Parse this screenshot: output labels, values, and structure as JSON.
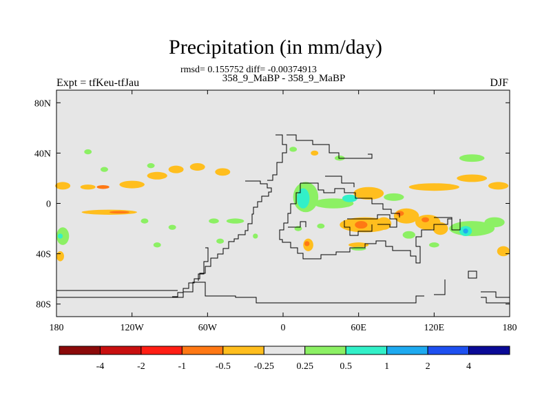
{
  "chart_data": {
    "type": "heatmap",
    "title": "Precipitation (in mm/day)",
    "stats_text": "rmsd= 0.155752 diff= -0.00374913",
    "subtitle": "358_9_MaBP - 358_9_MaBP",
    "left_label": "Expt = tfKeu-tfJau",
    "right_label": "DJF",
    "x_range": [
      -180,
      180
    ],
    "y_range": [
      -90,
      90
    ],
    "x_ticks": [
      {
        "value": -180,
        "label": "180"
      },
      {
        "value": -120,
        "label": "120W"
      },
      {
        "value": -60,
        "label": "60W"
      },
      {
        "value": 0,
        "label": "0"
      },
      {
        "value": 60,
        "label": "60E"
      },
      {
        "value": 120,
        "label": "120E"
      },
      {
        "value": 180,
        "label": "180"
      }
    ],
    "y_ticks": [
      {
        "value": 80,
        "label": "80N"
      },
      {
        "value": 40,
        "label": "40N"
      },
      {
        "value": 0,
        "label": "0"
      },
      {
        "value": -40,
        "label": "40S"
      },
      {
        "value": -80,
        "label": "80S"
      }
    ],
    "colorbar": {
      "colors": [
        "#8b0a0a",
        "#c80f0f",
        "#ff1e14",
        "#ff7814",
        "#ffbe1e",
        "#e6e6e6",
        "#8cf064",
        "#32f0c8",
        "#1eaaf0",
        "#1e50f0",
        "#0a0a96"
      ],
      "labels": [
        "-4",
        "-2",
        "-1",
        "-0.5",
        "-0.25",
        "0.25",
        "0.5",
        "1",
        "2",
        "4"
      ]
    },
    "anomalies": [
      {
        "lon": -155,
        "lat": 13,
        "rlon": 6,
        "rlat": 2,
        "color": "#ffbe1e"
      },
      {
        "lon": -143,
        "lat": 13,
        "rlon": 5,
        "rlat": 1.5,
        "color": "#ff7814"
      },
      {
        "lon": -175,
        "lat": 14,
        "rlon": 6,
        "rlat": 3,
        "color": "#ffbe1e"
      },
      {
        "lon": -120,
        "lat": 15,
        "rlon": 10,
        "rlat": 3,
        "color": "#ffbe1e"
      },
      {
        "lon": -100,
        "lat": 22,
        "rlon": 8,
        "rlat": 3,
        "color": "#ffbe1e"
      },
      {
        "lon": -85,
        "lat": 27,
        "rlon": 6,
        "rlat": 3,
        "color": "#ffbe1e"
      },
      {
        "lon": -68,
        "lat": 29,
        "rlon": 6,
        "rlat": 3,
        "color": "#ffbe1e"
      },
      {
        "lon": -48,
        "lat": 25,
        "rlon": 6,
        "rlat": 3,
        "color": "#ffbe1e"
      },
      {
        "lon": -105,
        "lat": 30,
        "rlon": 3,
        "rlat": 2,
        "color": "#8cf064"
      },
      {
        "lon": -142,
        "lat": 27,
        "rlon": 3,
        "rlat": 2,
        "color": "#8cf064"
      },
      {
        "lon": -155,
        "lat": 41,
        "rlon": 3,
        "rlat": 2,
        "color": "#8cf064"
      },
      {
        "lon": -138,
        "lat": -7,
        "rlon": 22,
        "rlat": 2,
        "color": "#ffbe1e"
      },
      {
        "lon": -130,
        "lat": -7,
        "rlon": 8,
        "rlat": 1,
        "color": "#ff7814"
      },
      {
        "lon": -175,
        "lat": -26,
        "rlon": 5,
        "rlat": 7,
        "color": "#8cf064"
      },
      {
        "lon": -177,
        "lat": -26,
        "rlon": 2,
        "rlat": 2,
        "color": "#32f0c8"
      },
      {
        "lon": -177,
        "lat": -42,
        "rlon": 3,
        "rlat": 4,
        "color": "#ffbe1e"
      },
      {
        "lon": -110,
        "lat": -14,
        "rlon": 3,
        "rlat": 2,
        "color": "#8cf064"
      },
      {
        "lon": -88,
        "lat": -19,
        "rlon": 3,
        "rlat": 2,
        "color": "#8cf064"
      },
      {
        "lon": -55,
        "lat": -14,
        "rlon": 4,
        "rlat": 2,
        "color": "#8cf064"
      },
      {
        "lon": -38,
        "lat": -14,
        "rlon": 7,
        "rlat": 2,
        "color": "#8cf064"
      },
      {
        "lon": -50,
        "lat": -30,
        "rlon": 3,
        "rlat": 2,
        "color": "#8cf064"
      },
      {
        "lon": -100,
        "lat": -33,
        "rlon": 3,
        "rlat": 2,
        "color": "#8cf064"
      },
      {
        "lon": -22,
        "lat": -26,
        "rlon": 2,
        "rlat": 2,
        "color": "#8cf064"
      },
      {
        "lon": 8,
        "lat": 43,
        "rlon": 3,
        "rlat": 2,
        "color": "#8cf064"
      },
      {
        "lon": 25,
        "lat": 40,
        "rlon": 3,
        "rlat": 2,
        "color": "#ffbe1e"
      },
      {
        "lon": 45,
        "lat": 36,
        "rlon": 4,
        "rlat": 2,
        "color": "#8cf064"
      },
      {
        "lon": 18,
        "lat": 5,
        "rlon": 10,
        "rlat": 12,
        "color": "#8cf064"
      },
      {
        "lon": 16,
        "lat": 4,
        "rlon": 5,
        "rlat": 8,
        "color": "#32f0c8"
      },
      {
        "lon": 40,
        "lat": 0,
        "rlon": 16,
        "rlat": 4,
        "color": "#8cf064"
      },
      {
        "lon": 53,
        "lat": 4,
        "rlon": 6,
        "rlat": 3,
        "color": "#32f0c8"
      },
      {
        "lon": 68,
        "lat": 8,
        "rlon": 12,
        "rlat": 5,
        "color": "#ffbe1e"
      },
      {
        "lon": 88,
        "lat": 5,
        "rlon": 8,
        "rlat": 3,
        "color": "#8cf064"
      },
      {
        "lon": 120,
        "lat": 13,
        "rlon": 20,
        "rlat": 3,
        "color": "#ffbe1e"
      },
      {
        "lon": 150,
        "lat": 20,
        "rlon": 12,
        "rlat": 3,
        "color": "#ffbe1e"
      },
      {
        "lon": 150,
        "lat": 36,
        "rlon": 10,
        "rlat": 3,
        "color": "#8cf064"
      },
      {
        "lon": 171,
        "lat": 14,
        "rlon": 8,
        "rlat": 3,
        "color": "#ffbe1e"
      },
      {
        "lon": 65,
        "lat": -17,
        "rlon": 20,
        "rlat": 6,
        "color": "#ffbe1e"
      },
      {
        "lon": 62,
        "lat": -17,
        "rlon": 5,
        "rlat": 3,
        "color": "#ff7814"
      },
      {
        "lon": 80,
        "lat": -16,
        "rlon": 6,
        "rlat": 5,
        "color": "#ffbe1e"
      },
      {
        "lon": 98,
        "lat": -10,
        "rlon": 10,
        "rlat": 6,
        "color": "#ffbe1e"
      },
      {
        "lon": 93,
        "lat": -8,
        "rlon": 3,
        "rlat": 2,
        "color": "#ff7814"
      },
      {
        "lon": 115,
        "lat": -15,
        "rlon": 10,
        "rlat": 6,
        "color": "#ffbe1e"
      },
      {
        "lon": 113,
        "lat": -13,
        "rlon": 3,
        "rlat": 2,
        "color": "#ff7814"
      },
      {
        "lon": 125,
        "lat": -20,
        "rlon": 6,
        "rlat": 5,
        "color": "#ffbe1e"
      },
      {
        "lon": 100,
        "lat": -25,
        "rlon": 5,
        "rlat": 3,
        "color": "#8cf064"
      },
      {
        "lon": 150,
        "lat": -20,
        "rlon": 18,
        "rlat": 6,
        "color": "#8cf064"
      },
      {
        "lon": 145,
        "lat": -22,
        "rlon": 5,
        "rlat": 4,
        "color": "#32f0c8"
      },
      {
        "lon": 145,
        "lat": -22,
        "rlon": 2,
        "rlat": 2,
        "color": "#1eaaf0"
      },
      {
        "lon": 168,
        "lat": -15,
        "rlon": 8,
        "rlat": 4,
        "color": "#8cf064"
      },
      {
        "lon": 175,
        "lat": -38,
        "rlon": 5,
        "rlat": 4,
        "color": "#ffbe1e"
      },
      {
        "lon": 120,
        "lat": -33,
        "rlon": 4,
        "rlat": 2,
        "color": "#8cf064"
      },
      {
        "lon": 20,
        "lat": -33,
        "rlon": 4,
        "rlat": 5,
        "color": "#ffbe1e"
      },
      {
        "lon": 19,
        "lat": -32,
        "rlon": 2,
        "rlat": 2,
        "color": "#ff7814"
      },
      {
        "lon": 30,
        "lat": -18,
        "rlon": 3,
        "rlat": 2,
        "color": "#8cf064"
      },
      {
        "lon": 60,
        "lat": -33,
        "rlon": 8,
        "rlat": 2,
        "color": "#ffbe1e"
      },
      {
        "lon": 60,
        "lat": -36,
        "rlon": 6,
        "rlat": 1.5,
        "color": "#8cf064"
      },
      {
        "lon": 12,
        "lat": -20,
        "rlon": 3,
        "rlat": 2,
        "color": "#8cf064"
      }
    ]
  }
}
